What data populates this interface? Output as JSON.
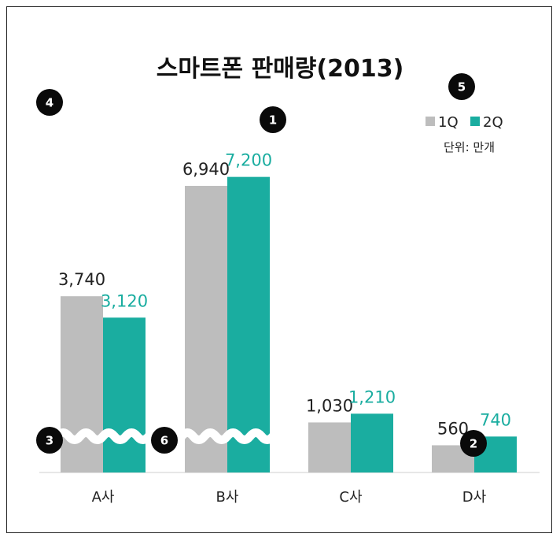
{
  "chart_data": {
    "type": "bar",
    "title": "스마트폰 판매량(2013)",
    "unit": "단위: 만개",
    "categories": [
      "A사",
      "B사",
      "C사",
      "D사"
    ],
    "series": [
      {
        "name": "1Q",
        "values": [
          3740,
          6940,
          1030,
          560
        ],
        "color": "#bdbdbd"
      },
      {
        "name": "2Q",
        "values": [
          3120,
          7200,
          1210,
          740
        ],
        "color": "#1aada0"
      }
    ],
    "value_labels": [
      [
        "3,740",
        "6,940",
        "1,030",
        "560"
      ],
      [
        "3,120",
        "7,200",
        "1,210",
        "740"
      ]
    ],
    "label_colors": [
      "#222222",
      "#1aada0"
    ],
    "axis_break_categories": [
      "A사",
      "B사"
    ]
  },
  "badges": [
    {
      "label": "1"
    },
    {
      "label": "2"
    },
    {
      "label": "3"
    },
    {
      "label": "4"
    },
    {
      "label": "5"
    },
    {
      "label": "6"
    }
  ]
}
